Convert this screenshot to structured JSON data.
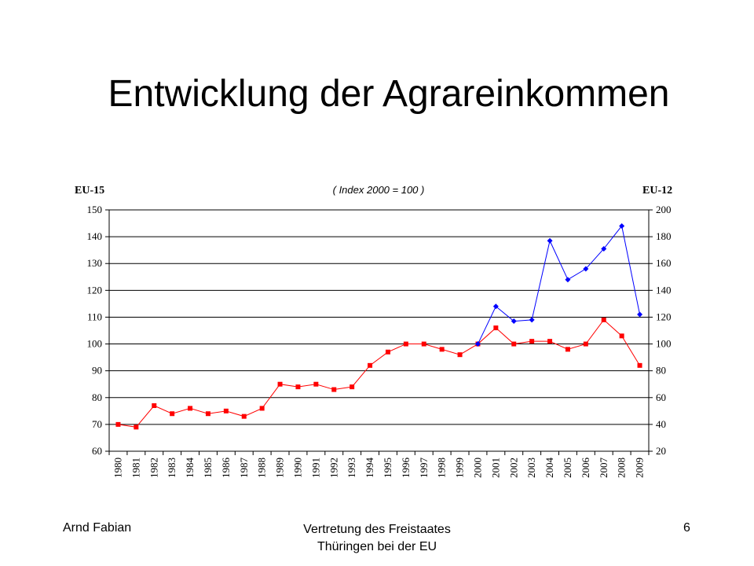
{
  "slide": {
    "title": "Entwicklung der Agrareinkommen",
    "footer_left": "Arnd Fabian",
    "footer_center_line1": "Vertretung des Freistaates",
    "footer_center_line2": "Thüringen bei der EU",
    "page_number": "6"
  },
  "chart_data": {
    "type": "line",
    "annotation": "( Index 2000 = 100 )",
    "left_axis_label": "EU-15",
    "right_axis_label": "EU-12",
    "x": [
      "1980",
      "1981",
      "1982",
      "1983",
      "1984",
      "1985",
      "1986",
      "1987",
      "1988",
      "1989",
      "1990",
      "1991",
      "1992",
      "1993",
      "1994",
      "1995",
      "1996",
      "1997",
      "1998",
      "1999",
      "2000",
      "2001",
      "2002",
      "2003",
      "2004",
      "2005",
      "2006",
      "2007",
      "2008",
      "2009"
    ],
    "left_ylim": [
      60,
      150
    ],
    "left_yticks": [
      60,
      70,
      80,
      90,
      100,
      110,
      120,
      130,
      140,
      150
    ],
    "right_ylim": [
      20,
      200
    ],
    "right_yticks": [
      20,
      40,
      60,
      80,
      100,
      120,
      140,
      160,
      180,
      200
    ],
    "grid": true,
    "series": [
      {
        "axis": "left",
        "color": "#ff0000",
        "marker": "square",
        "x": [
          "1980",
          "1981",
          "1982",
          "1983",
          "1984",
          "1985",
          "1986",
          "1987",
          "1988",
          "1989",
          "1990",
          "1991",
          "1992",
          "1993",
          "1994",
          "1995",
          "1996",
          "1997",
          "1998",
          "1999",
          "2000",
          "2001",
          "2002",
          "2003",
          "2004",
          "2005",
          "2006",
          "2007",
          "2008",
          "2009"
        ],
        "values": [
          70,
          69,
          77,
          74,
          76,
          74,
          75,
          73,
          76,
          85,
          84,
          85,
          83,
          84,
          92,
          97,
          100,
          100,
          98,
          96,
          100,
          106,
          100,
          101,
          101,
          98,
          100,
          109,
          103,
          92
        ]
      },
      {
        "axis": "right",
        "color": "#0000ff",
        "marker": "diamond",
        "x": [
          "2000",
          "2001",
          "2002",
          "2003",
          "2004",
          "2005",
          "2006",
          "2007",
          "2008",
          "2009"
        ],
        "values": [
          100,
          128,
          117,
          118,
          177,
          148,
          156,
          171,
          188,
          122
        ]
      }
    ]
  }
}
